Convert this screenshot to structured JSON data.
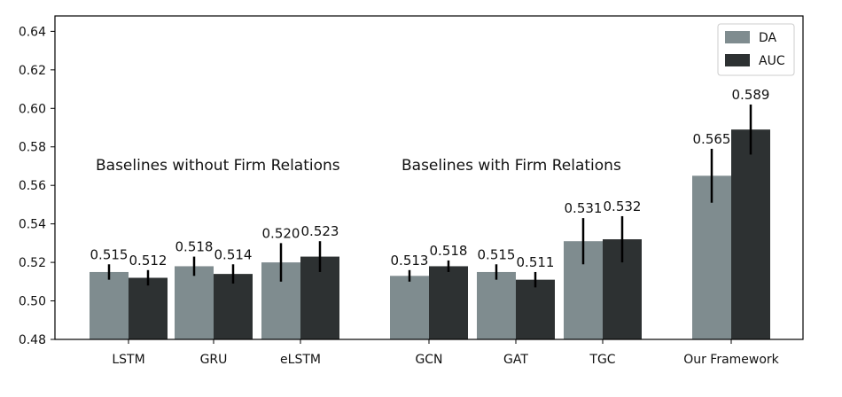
{
  "chart_data": {
    "type": "bar",
    "categories": [
      "LSTM",
      "GRU",
      "eLSTM",
      "GCN",
      "GAT",
      "TGC",
      "Our Framework"
    ],
    "series": [
      {
        "name": "DA",
        "color": "#7f8c8f",
        "values": [
          0.515,
          0.518,
          0.52,
          0.513,
          0.515,
          0.531,
          0.565
        ],
        "error": [
          0.004,
          0.005,
          0.01,
          0.003,
          0.004,
          0.012,
          0.014
        ]
      },
      {
        "name": "AUC",
        "color": "#2d3132",
        "values": [
          0.512,
          0.514,
          0.523,
          0.518,
          0.511,
          0.532,
          0.589
        ],
        "error": [
          0.004,
          0.005,
          0.008,
          0.003,
          0.004,
          0.012,
          0.013
        ]
      }
    ],
    "data_labels": {
      "DA": [
        "0.515",
        "0.518",
        "0.520",
        "0.513",
        "0.515",
        "0.531",
        "0.565"
      ],
      "AUC": [
        "0.512",
        "0.514",
        "0.523",
        "0.518",
        "0.511",
        "0.532",
        "0.589"
      ]
    },
    "ylim": [
      0.48,
      0.648
    ],
    "yticks": [
      "0.48",
      "0.50",
      "0.52",
      "0.54",
      "0.56",
      "0.58",
      "0.60",
      "0.62",
      "0.64"
    ],
    "xlabel": "",
    "ylabel": "",
    "legend_position": "top-right",
    "grid": false,
    "annotations": [
      "Baselines without Firm Relations",
      "Baselines with Firm Relations"
    ]
  }
}
